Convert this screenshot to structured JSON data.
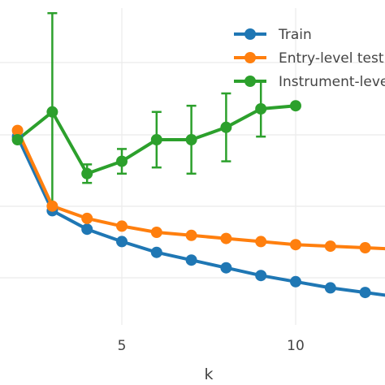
{
  "chart_data": {
    "type": "line",
    "title": "",
    "xlabel": "k",
    "ylabel": "",
    "x_ticks": [
      5,
      10
    ],
    "x_range": [
      1.5,
      12.7
    ],
    "y_range": [
      0.0,
      1.0
    ],
    "grid": true,
    "legend_position": "top-right",
    "series": [
      {
        "name": "Train",
        "color": "#1f77b4",
        "x": [
          2,
          3,
          4,
          5,
          6,
          7,
          8,
          9,
          10,
          11,
          12,
          13
        ],
        "y": [
          0.61,
          0.37,
          0.31,
          0.27,
          0.235,
          0.21,
          0.185,
          0.16,
          0.14,
          0.12,
          0.105,
          0.09
        ]
      },
      {
        "name": "Entry-level test",
        "color": "#ff7f0e",
        "x": [
          2,
          3,
          4,
          5,
          6,
          7,
          8,
          9,
          10,
          11,
          12,
          13
        ],
        "y": [
          0.63,
          0.385,
          0.345,
          0.32,
          0.3,
          0.29,
          0.28,
          0.27,
          0.26,
          0.255,
          0.25,
          0.245
        ]
      },
      {
        "name": "Instrument-level test",
        "color": "#2ca02c",
        "x": [
          2,
          3,
          4,
          5,
          6,
          7,
          8,
          9,
          10
        ],
        "y": [
          0.6,
          0.69,
          0.49,
          0.53,
          0.6,
          0.6,
          0.64,
          0.7,
          0.71
        ],
        "error": [
          0,
          0.32,
          0.03,
          0.04,
          0.09,
          0.11,
          0.11,
          0.09,
          0
        ]
      }
    ]
  }
}
